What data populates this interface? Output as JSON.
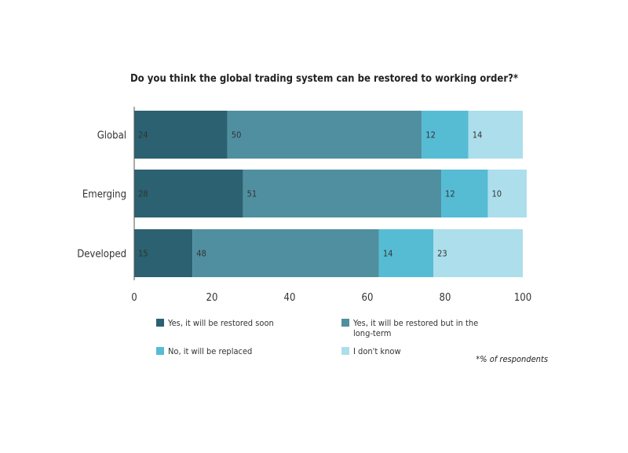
{
  "chart_data": {
    "type": "bar",
    "orientation": "horizontal",
    "stacked": true,
    "title": "Do you think the global trading system can be restored to working order?*",
    "categories": [
      "Global",
      "Emerging",
      "Developed"
    ],
    "series": [
      {
        "name": "Yes, it will be restored soon",
        "color": "#2b6170",
        "values": [
          24,
          28,
          15
        ]
      },
      {
        "name": "Yes, it will be restored but in the long-term",
        "color": "#4f8fa0",
        "values": [
          50,
          51,
          48
        ]
      },
      {
        "name": "No, it will be replaced",
        "color": "#55bcd4",
        "values": [
          12,
          12,
          14
        ]
      },
      {
        "name": "I don't know",
        "color": "#acdeeb",
        "values": [
          14,
          10,
          23
        ]
      }
    ],
    "xlim": [
      0,
      100
    ],
    "xticks": [
      0,
      20,
      40,
      60,
      80,
      100
    ],
    "grid": false,
    "legend_position": "bottom",
    "footnote": "*% of respondents"
  }
}
